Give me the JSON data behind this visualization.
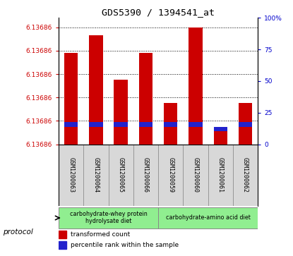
{
  "title": "GDS5390 / 1394541_at",
  "samples": [
    "GSM1200063",
    "GSM1200064",
    "GSM1200065",
    "GSM1200066",
    "GSM1200059",
    "GSM1200060",
    "GSM1200061",
    "GSM1200062"
  ],
  "red_bar_tops": [
    0.78,
    0.93,
    0.55,
    0.78,
    0.35,
    1.0,
    0.12,
    0.35
  ],
  "blue_percentiles": [
    17,
    17,
    17,
    17,
    17,
    17,
    13,
    17
  ],
  "ylim_right": [
    0,
    100
  ],
  "ytick_labels_left": [
    "6.13686",
    "6.13686",
    "6.13686",
    "6.13686",
    "6.13686",
    "6.13686"
  ],
  "ytick_positions_left": [
    0.0,
    0.2,
    0.4,
    0.6,
    0.8,
    1.0
  ],
  "ytick_labels_right": [
    "0",
    "25",
    "50",
    "75",
    "100%"
  ],
  "ytick_positions_right": [
    0,
    25,
    50,
    75,
    100
  ],
  "group1_label": "carbohydrate-whey protein\nhydrolysate diet",
  "group2_label": "carbohydrate-amino acid diet",
  "group_color": "#90EE90",
  "protocol_label": "protocol",
  "legend_red": "transformed count",
  "legend_blue": "percentile rank within the sample",
  "bar_color_red": "#CC0000",
  "bar_color_blue": "#2222CC",
  "left_axis_color": "#CC0000",
  "right_axis_color": "#0000CC",
  "bar_width": 0.55,
  "sample_bg": "#D8D8D8"
}
